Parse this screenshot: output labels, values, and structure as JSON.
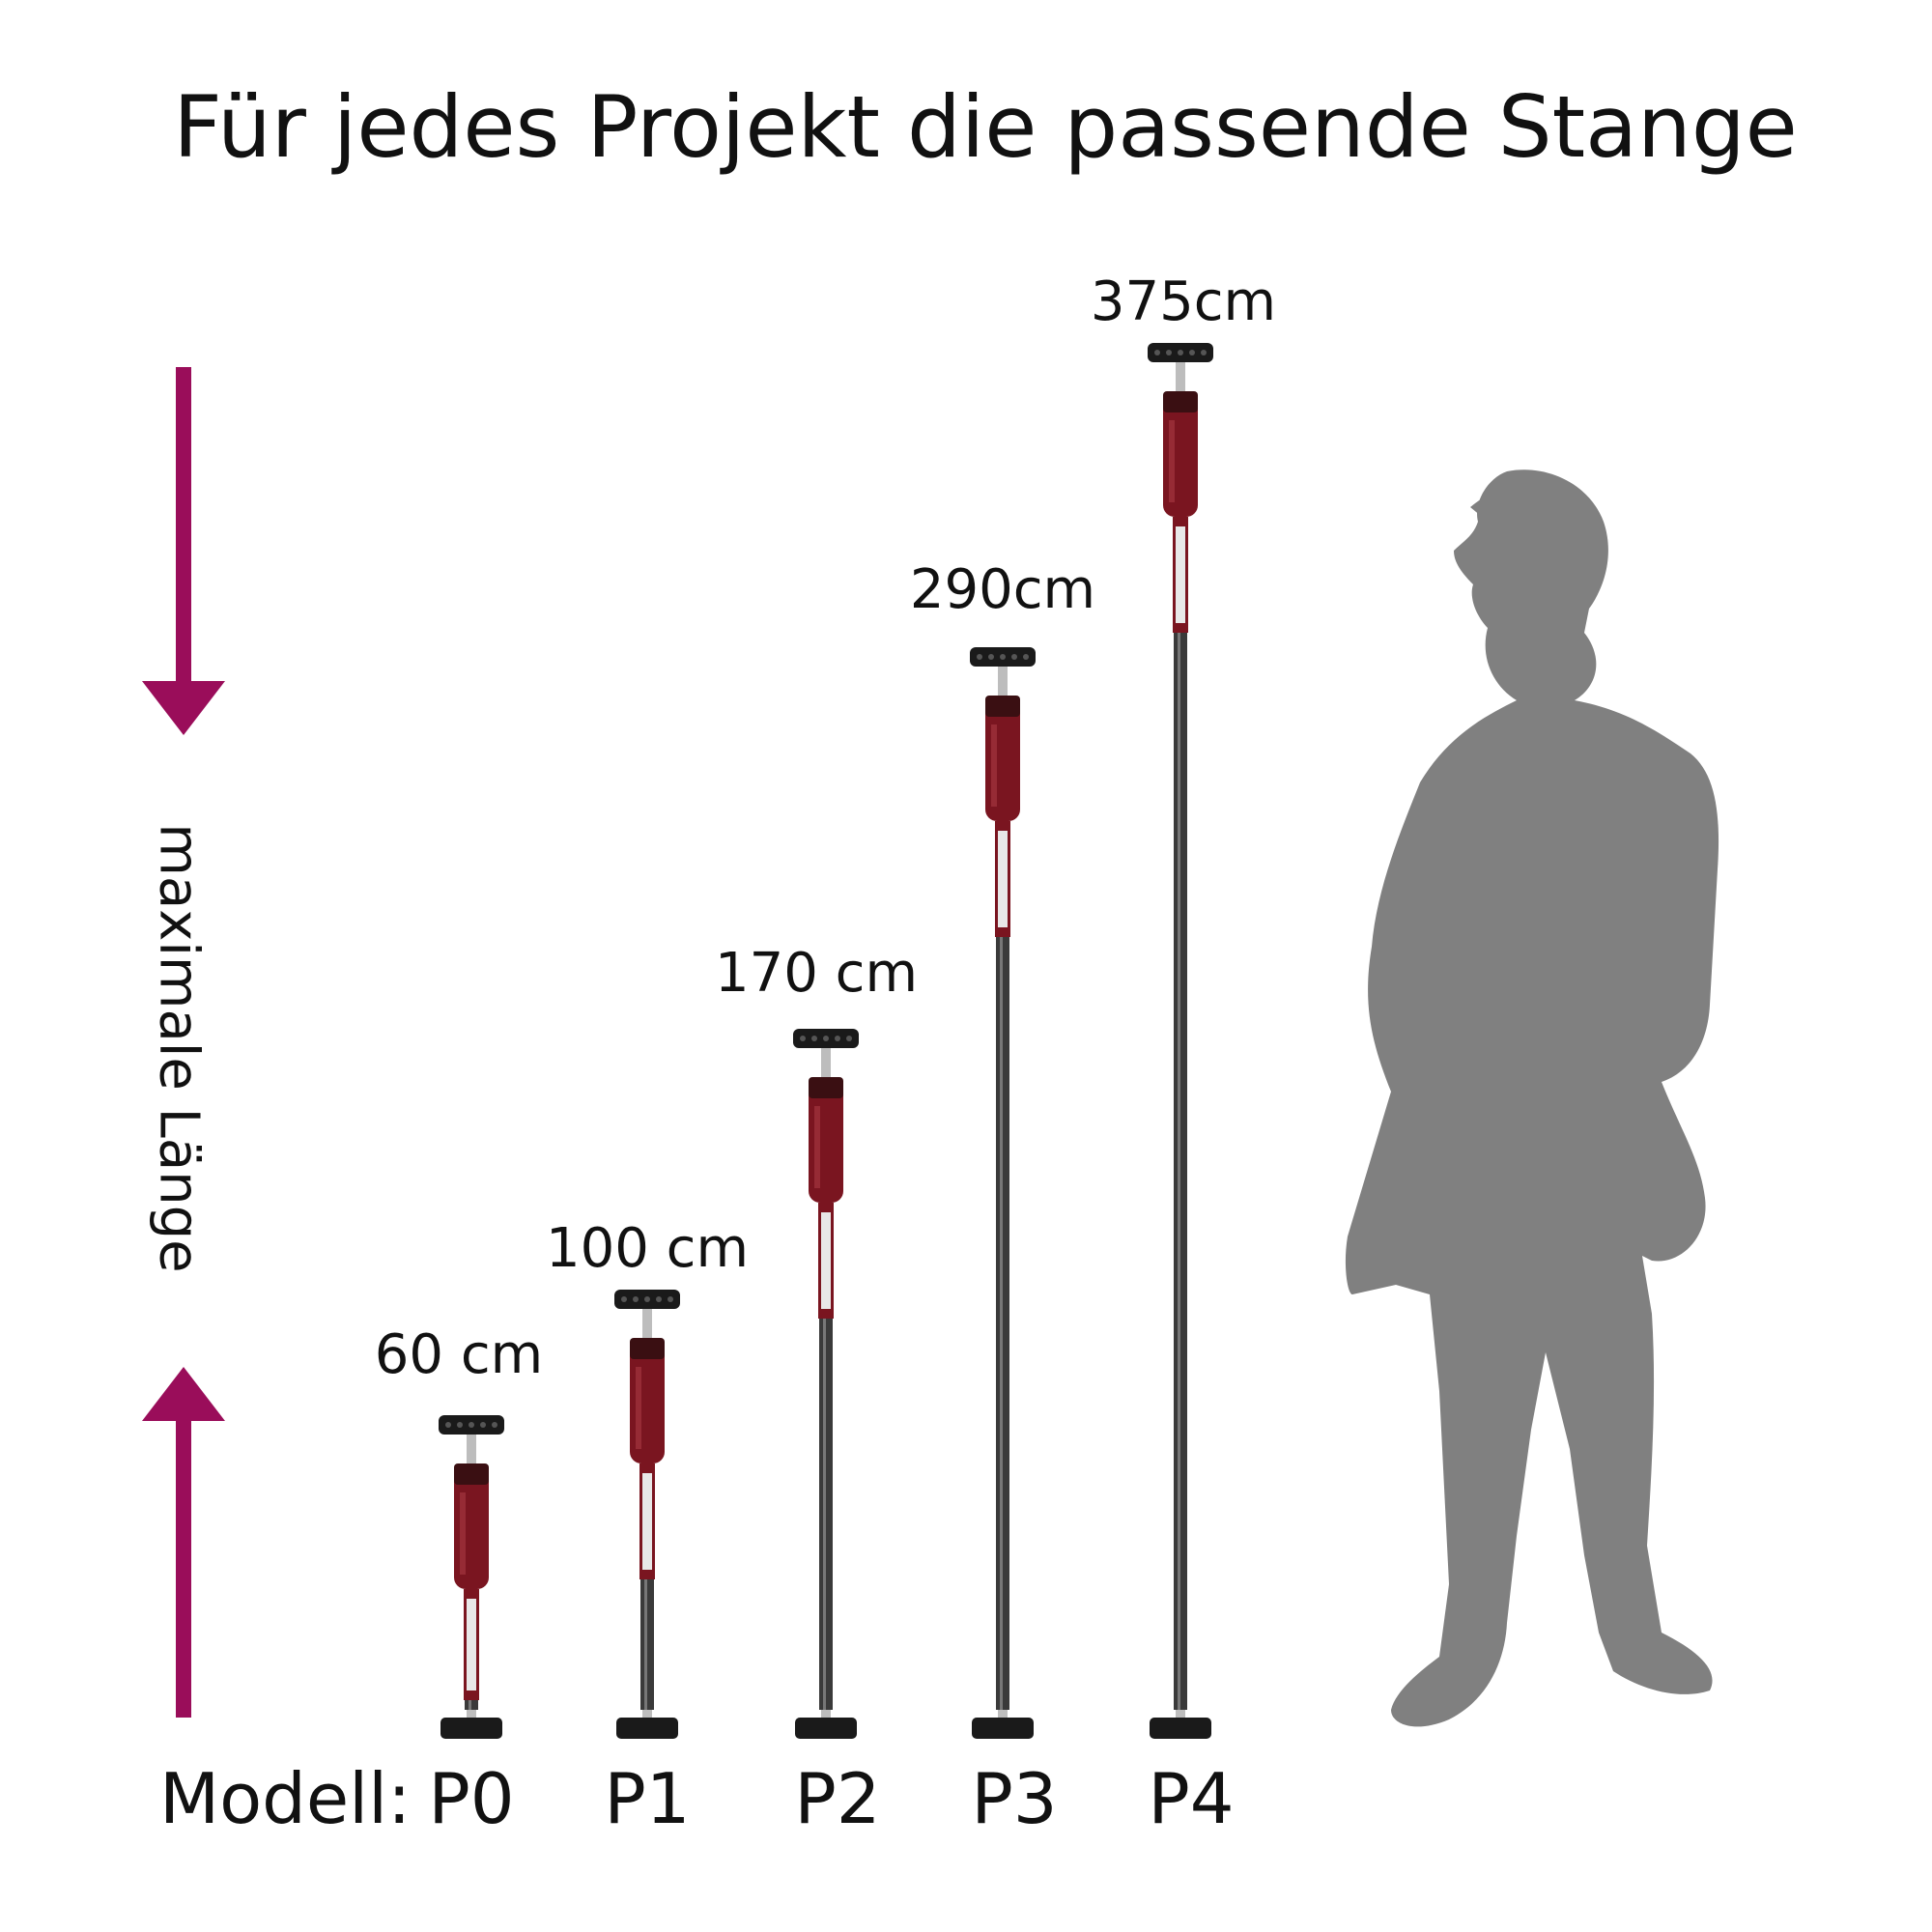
{
  "title": "Für jedes Projekt die passende Stange",
  "axis_label": "maximale Länge",
  "model_prefix": "Modell:",
  "colors": {
    "accent": "#9a0d5a",
    "handle": "#7a1520",
    "pole": "#3a3a3a",
    "silhouette": "#808080"
  },
  "poles": [
    {
      "model": "P0",
      "length_label": "60 cm",
      "max_length_cm": 60
    },
    {
      "model": "P1",
      "length_label": "100 cm",
      "max_length_cm": 100
    },
    {
      "model": "P2",
      "length_label": "170 cm",
      "max_length_cm": 170
    },
    {
      "model": "P3",
      "length_label": "290cm",
      "max_length_cm": 290
    },
    {
      "model": "P4",
      "length_label": "375cm",
      "max_length_cm": 375
    }
  ],
  "icons": {
    "arrow_down": "arrow-down-icon",
    "arrow_up": "arrow-up-icon",
    "person": "person-silhouette-icon"
  }
}
